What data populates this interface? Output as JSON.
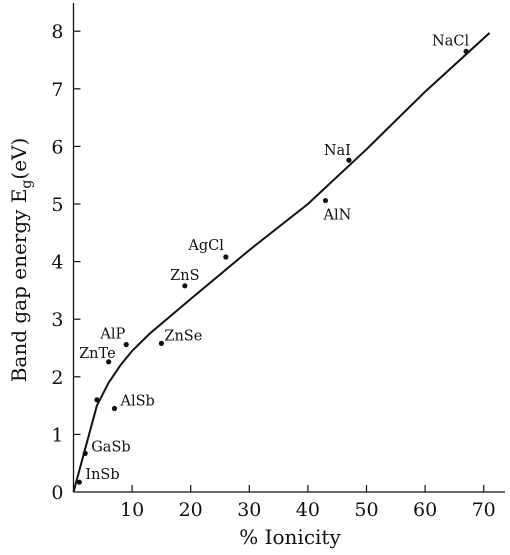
{
  "chart_data": {
    "type": "scatter",
    "xlabel": "% Ionicity",
    "ylabel_main": "Band gap energy E",
    "ylabel_sub": "g",
    "ylabel_unit": "(eV)",
    "xlim": [
      0,
      72
    ],
    "ylim": [
      0,
      8.5
    ],
    "xticks": [
      "10",
      "20",
      "30",
      "40",
      "50",
      "60",
      "70"
    ],
    "yticks": [
      "0",
      "1",
      "2",
      "3",
      "4",
      "5",
      "6",
      "7",
      "8"
    ],
    "grid": false,
    "points": [
      {
        "label": "InSb",
        "x": 1,
        "y": 0.17
      },
      {
        "label": "GaSb",
        "x": 2,
        "y": 0.67
      },
      {
        "label": "AlSb",
        "x": 7,
        "y": 1.45
      },
      {
        "x": 4,
        "y": 1.6
      },
      {
        "label": "ZnTe",
        "x": 6,
        "y": 2.26
      },
      {
        "label": "AlP",
        "x": 9,
        "y": 2.56
      },
      {
        "label": "ZnSe",
        "x": 15,
        "y": 2.58
      },
      {
        "label": "ZnS",
        "x": 19,
        "y": 3.58
      },
      {
        "label": "AgCl",
        "x": 26,
        "y": 4.08
      },
      {
        "label": "AlN",
        "x": 43,
        "y": 5.06
      },
      {
        "label": "NaI",
        "x": 47,
        "y": 5.76
      },
      {
        "label": "NaCl",
        "x": 67,
        "y": 7.65
      }
    ],
    "fit_line": [
      {
        "x": 0,
        "y": 0
      },
      {
        "x": 2,
        "y": 0.75
      },
      {
        "x": 4,
        "y": 1.5
      },
      {
        "x": 6,
        "y": 1.9
      },
      {
        "x": 8,
        "y": 2.2
      },
      {
        "x": 10,
        "y": 2.45
      },
      {
        "x": 13,
        "y": 2.75
      },
      {
        "x": 20,
        "y": 3.35
      },
      {
        "x": 30,
        "y": 4.2
      },
      {
        "x": 40,
        "y": 5.0
      },
      {
        "x": 50,
        "y": 5.95
      },
      {
        "x": 60,
        "y": 6.95
      },
      {
        "x": 71,
        "y": 7.97
      }
    ]
  }
}
